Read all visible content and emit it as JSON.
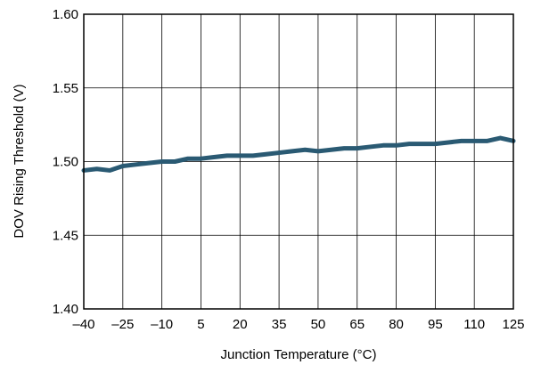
{
  "chart_data": {
    "type": "line",
    "title": "",
    "xlabel": "Junction Temperature (°C)",
    "ylabel": "DOV Rising Threshold (V)",
    "xlim": [
      -40,
      125
    ],
    "ylim": [
      1.4,
      1.6
    ],
    "x_ticks": [
      -40,
      -25,
      -10,
      5,
      20,
      35,
      50,
      65,
      80,
      95,
      110,
      125
    ],
    "x_tick_labels": [
      "–40",
      "–25",
      "–10",
      "5",
      "20",
      "35",
      "50",
      "65",
      "80",
      "95",
      "110",
      "125"
    ],
    "y_ticks": [
      1.4,
      1.45,
      1.5,
      1.55,
      1.6
    ],
    "y_tick_labels": [
      "1.40",
      "1.45",
      "1.50",
      "1.55",
      "1.60"
    ],
    "grid": true,
    "series": [
      {
        "color": "#2a5a73",
        "x": [
          -40,
          -35,
          -30,
          -25,
          -20,
          -15,
          -10,
          -5,
          0,
          5,
          10,
          15,
          20,
          25,
          30,
          35,
          40,
          45,
          50,
          55,
          60,
          65,
          70,
          75,
          80,
          85,
          90,
          95,
          100,
          105,
          110,
          115,
          120,
          125
        ],
        "y": [
          1.494,
          1.495,
          1.494,
          1.497,
          1.498,
          1.499,
          1.5,
          1.5,
          1.502,
          1.502,
          1.503,
          1.504,
          1.504,
          1.504,
          1.505,
          1.506,
          1.507,
          1.508,
          1.507,
          1.508,
          1.509,
          1.509,
          1.51,
          1.511,
          1.511,
          1.512,
          1.512,
          1.512,
          1.513,
          1.514,
          1.514,
          1.514,
          1.516,
          1.514
        ]
      }
    ]
  }
}
